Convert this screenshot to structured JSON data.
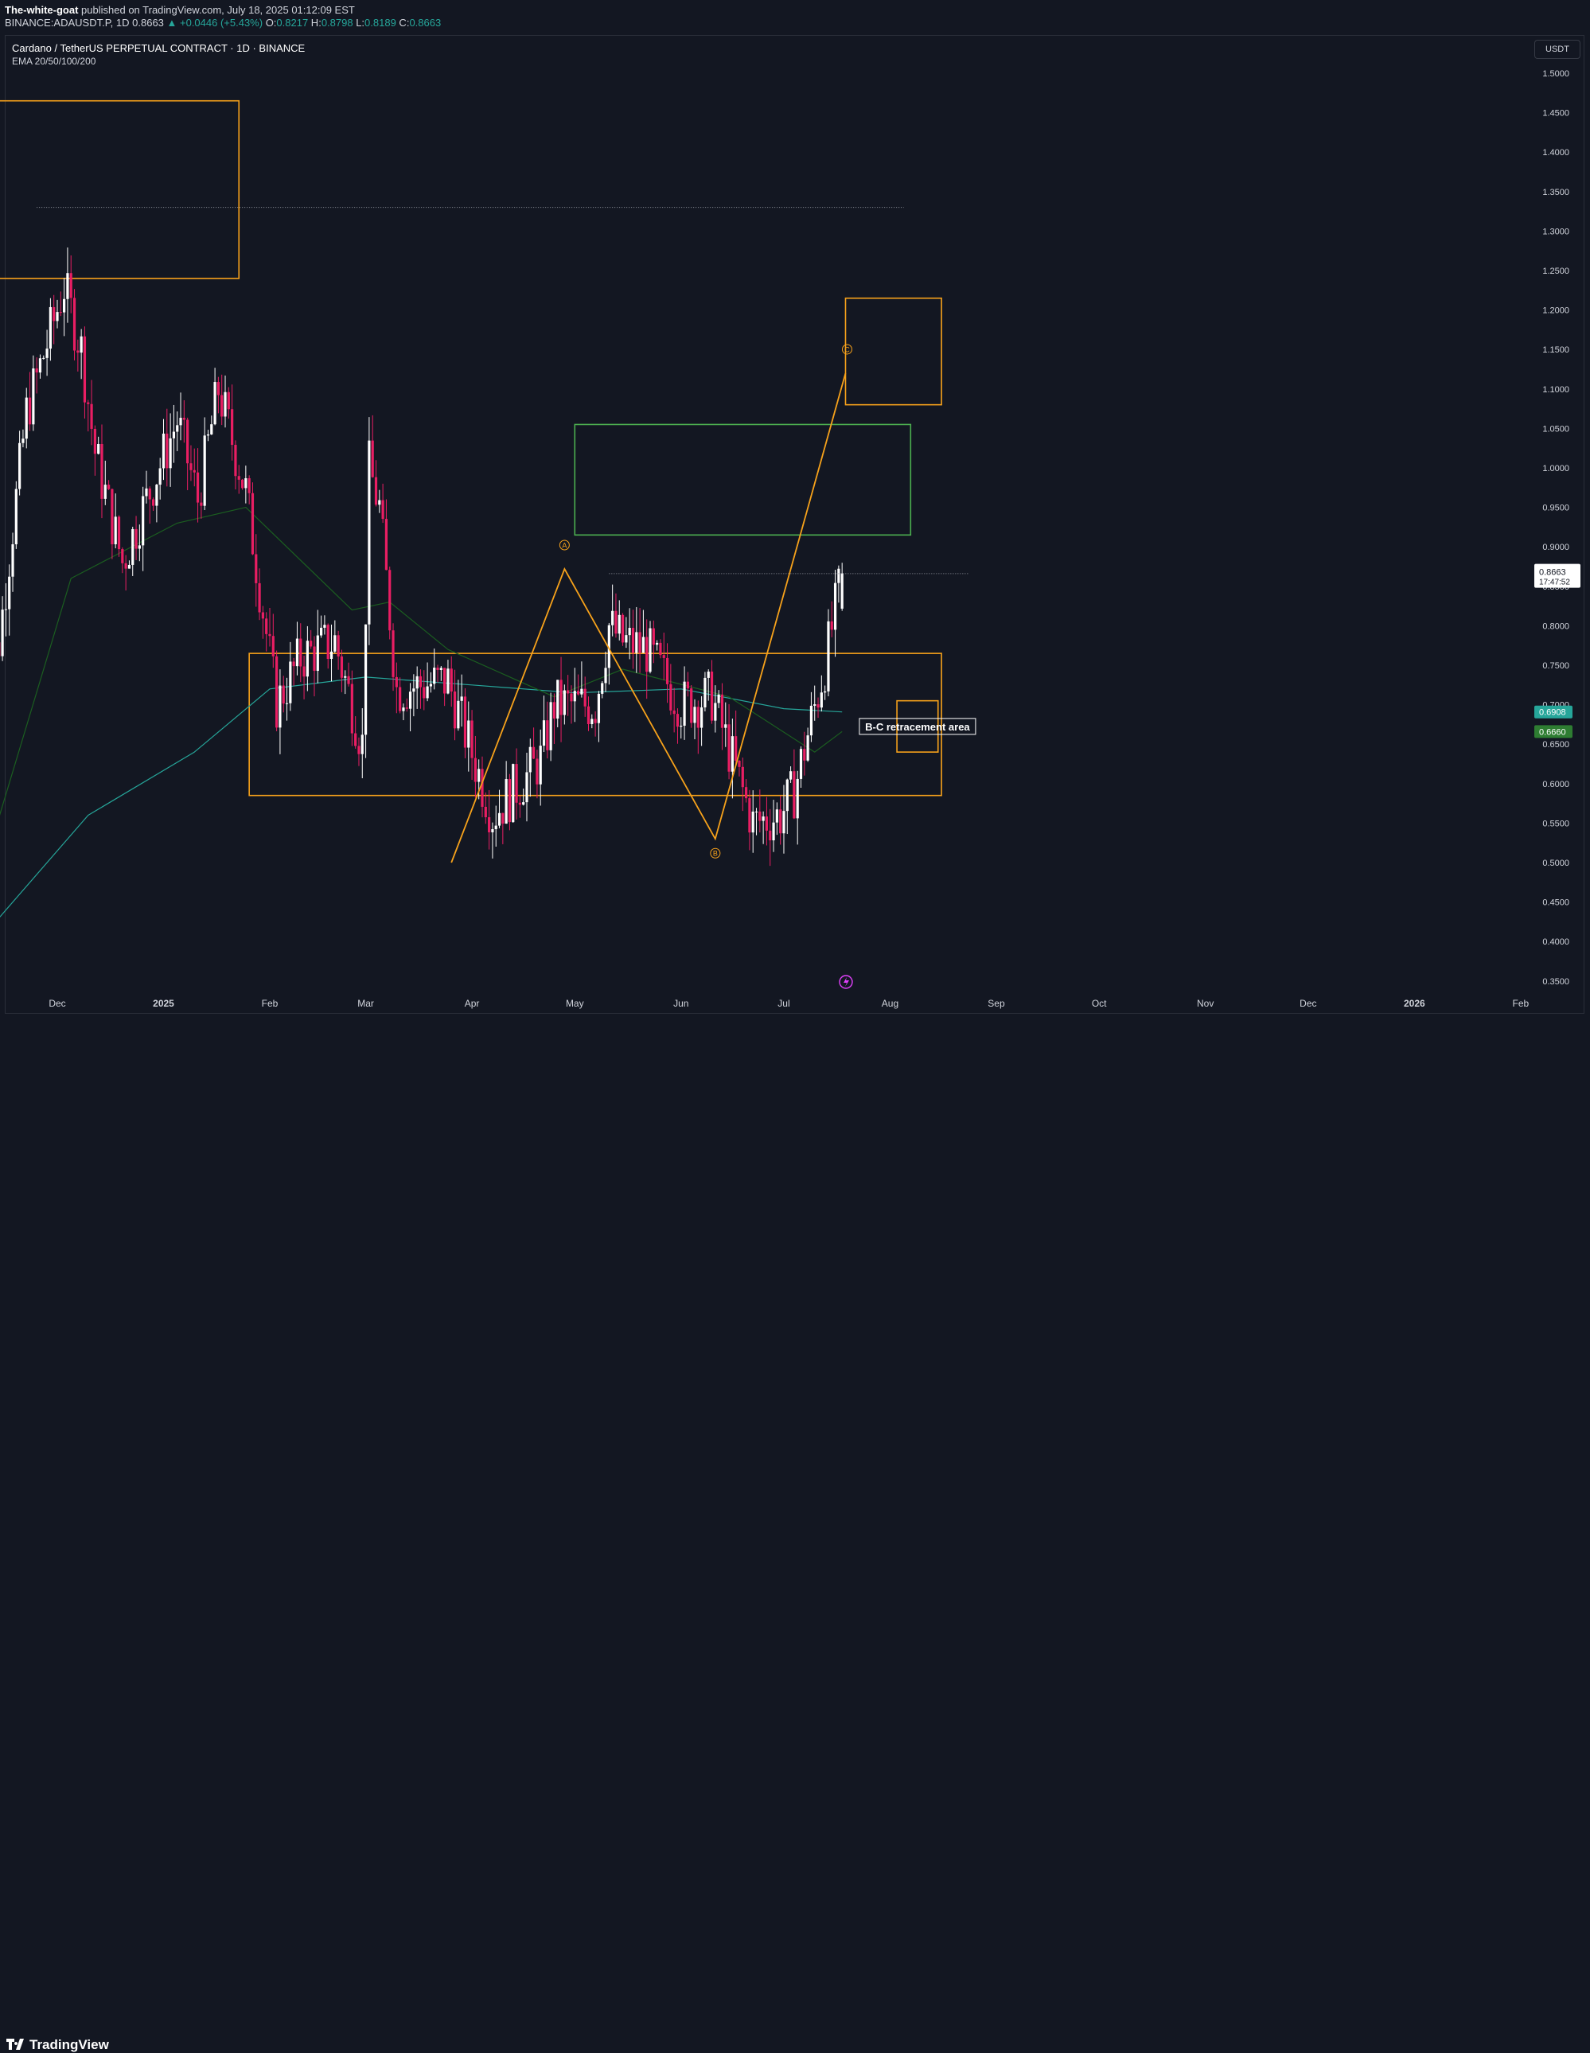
{
  "header": {
    "author": "The-white-goat",
    "published_text": " published on TradingView.com, July 18, 2025 01:12:09 EST",
    "symbol_line_prefix": "BINANCE:ADAUSDT.P, 1D 0.8663 ",
    "change": "▲ +0.0446 (+5.43%)",
    "ohlc_prefix": " O:",
    "open": "0.8217",
    "high_label": " H:",
    "high": "0.8798",
    "low_label": " L:",
    "low": "0.8189",
    "close_label": " C:",
    "close": "0.8663"
  },
  "chart_title": "Cardano / TetherUS PERPETUAL CONTRACT · 1D · BINANCE",
  "indicator_label": "EMA 20/50/100/200",
  "unit_button": "USDT",
  "footer_logo": "TradingView",
  "colors": {
    "background": "#131722",
    "up_candle": "#ffffff",
    "down_candle": "#e91e63",
    "zone_orange": "#f7a21b",
    "zone_green": "#4caf50",
    "ema_dark_green": "#1b5e20",
    "ema_teal": "#26a69a",
    "price_tag": "#ffffff"
  },
  "chart_data": {
    "type": "candlestick",
    "ylim": [
      0.35,
      1.5
    ],
    "y_ticks": [
      "1.5000",
      "1.4500",
      "1.4000",
      "1.3500",
      "1.3000",
      "1.2500",
      "1.2000",
      "1.1500",
      "1.1000",
      "1.0500",
      "1.0000",
      "0.9500",
      "0.9000",
      "0.8500",
      "0.8000",
      "0.7500",
      "0.7000",
      "0.6500",
      "0.6000",
      "0.5500",
      "0.5000",
      "0.4500",
      "0.4000",
      "0.3500"
    ],
    "x_ticks": [
      "Dec",
      "2025",
      "Feb",
      "Mar",
      "Apr",
      "May",
      "Jun",
      "Jul",
      "Aug",
      "Sep",
      "Oct",
      "Nov",
      "Dec",
      "2026",
      "Feb"
    ],
    "x_tick_dates": [
      "2024-12-01",
      "2025-01-01",
      "2025-02-01",
      "2025-03-01",
      "2025-04-01",
      "2025-05-01",
      "2025-06-01",
      "2025-07-01",
      "2025-08-01",
      "2025-09-01",
      "2025-10-01",
      "2025-11-01",
      "2025-12-01",
      "2026-01-01",
      "2026-02-01"
    ],
    "last_price": "0.8663",
    "countdown": "17:47:52",
    "ema_labels": [
      {
        "value": "0.6908",
        "color": "#26a69a"
      },
      {
        "value": "0.6660",
        "color": "#2e7d32"
      }
    ],
    "anchors": [
      {
        "date": "2024-11-09",
        "price": 0.72
      },
      {
        "date": "2024-11-14",
        "price": 0.78
      },
      {
        "date": "2024-11-22",
        "price": 1.07
      },
      {
        "date": "2024-12-03",
        "price": 1.23
      },
      {
        "date": "2024-12-08",
        "price": 1.15
      },
      {
        "date": "2024-12-12",
        "price": 1.02
      },
      {
        "date": "2024-12-20",
        "price": 0.88
      },
      {
        "date": "2025-01-05",
        "price": 1.06
      },
      {
        "date": "2025-01-11",
        "price": 0.96
      },
      {
        "date": "2025-01-17",
        "price": 1.1
      },
      {
        "date": "2025-01-25",
        "price": 0.97
      },
      {
        "date": "2025-02-03",
        "price": 0.7
      },
      {
        "date": "2025-02-10",
        "price": 0.76
      },
      {
        "date": "2025-02-20",
        "price": 0.78
      },
      {
        "date": "2025-02-28",
        "price": 0.65
      },
      {
        "date": "2025-03-02",
        "price": 1.0
      },
      {
        "date": "2025-03-05",
        "price": 0.95
      },
      {
        "date": "2025-03-10",
        "price": 0.72
      },
      {
        "date": "2025-03-25",
        "price": 0.73
      },
      {
        "date": "2025-04-07",
        "price": 0.56
      },
      {
        "date": "2025-04-21",
        "price": 0.63
      },
      {
        "date": "2025-04-25",
        "price": 0.7
      },
      {
        "date": "2025-05-07",
        "price": 0.7
      },
      {
        "date": "2025-05-11",
        "price": 0.8
      },
      {
        "date": "2025-05-15",
        "price": 0.78
      },
      {
        "date": "2025-05-22",
        "price": 0.77
      },
      {
        "date": "2025-06-01",
        "price": 0.7
      },
      {
        "date": "2025-06-10",
        "price": 0.71
      },
      {
        "date": "2025-06-22",
        "price": 0.55
      },
      {
        "date": "2025-06-30",
        "price": 0.56
      },
      {
        "date": "2025-07-04",
        "price": 0.59
      },
      {
        "date": "2025-07-09",
        "price": 0.68
      },
      {
        "date": "2025-07-13",
        "price": 0.75
      },
      {
        "date": "2025-07-16",
        "price": 0.82
      },
      {
        "date": "2025-07-18",
        "price": 0.8663
      }
    ],
    "ema_teal_series": [
      {
        "date": "2024-11-10",
        "price": 0.41
      },
      {
        "date": "2024-12-10",
        "price": 0.56
      },
      {
        "date": "2025-01-10",
        "price": 0.64
      },
      {
        "date": "2025-02-01",
        "price": 0.72
      },
      {
        "date": "2025-03-01",
        "price": 0.735
      },
      {
        "date": "2025-04-01",
        "price": 0.725
      },
      {
        "date": "2025-05-01",
        "price": 0.715
      },
      {
        "date": "2025-06-01",
        "price": 0.72
      },
      {
        "date": "2025-07-01",
        "price": 0.695
      },
      {
        "date": "2025-07-18",
        "price": 0.6908
      }
    ],
    "ema_green_series": [
      {
        "date": "2024-11-10",
        "price": 0.5
      },
      {
        "date": "2024-12-05",
        "price": 0.86
      },
      {
        "date": "2025-01-05",
        "price": 0.93
      },
      {
        "date": "2025-01-25",
        "price": 0.95
      },
      {
        "date": "2025-02-25",
        "price": 0.82
      },
      {
        "date": "2025-03-08",
        "price": 0.83
      },
      {
        "date": "2025-03-25",
        "price": 0.77
      },
      {
        "date": "2025-04-25",
        "price": 0.71
      },
      {
        "date": "2025-05-15",
        "price": 0.745
      },
      {
        "date": "2025-06-15",
        "price": 0.71
      },
      {
        "date": "2025-07-10",
        "price": 0.64
      },
      {
        "date": "2025-07-18",
        "price": 0.666
      }
    ],
    "zones": [
      {
        "name": "supply-zone-top",
        "color": "#f7a21b",
        "start": "2024-11-08",
        "end": "2025-01-23",
        "top": 1.465,
        "bottom": 1.24
      },
      {
        "name": "target-zone",
        "color": "#f7a21b",
        "start": "2025-07-19",
        "end": "2025-08-16",
        "top": 1.215,
        "bottom": 1.08
      },
      {
        "name": "green-zone",
        "color": "#4caf50",
        "start": "2025-05-01",
        "end": "2025-08-07",
        "top": 1.055,
        "bottom": 0.915
      },
      {
        "name": "range-zone",
        "color": "#f7a21b",
        "start": "2025-01-26",
        "end": "2025-08-16",
        "top": 0.765,
        "bottom": 0.585
      },
      {
        "name": "label-box",
        "color": "#f7a21b",
        "start": "2025-08-03",
        "end": "2025-08-15",
        "top": 0.705,
        "bottom": 0.64
      }
    ],
    "annotations": {
      "zone_label": "B-C retracement area",
      "wave_points": [
        {
          "label": "A",
          "date": "2025-04-28",
          "price": 0.872
        },
        {
          "label": "B",
          "date": "2025-06-11",
          "price": 0.53
        },
        {
          "label": "C",
          "date": "2025-07-19",
          "price": 1.12
        }
      ],
      "wave_start": {
        "date": "2025-03-26",
        "price": 0.5
      },
      "dotted_levels": [
        {
          "price": 1.33,
          "start": "2024-11-25",
          "end": "2025-08-05"
        },
        {
          "price": 0.866,
          "start": "2025-05-11",
          "end": "2025-08-24"
        }
      ]
    }
  }
}
